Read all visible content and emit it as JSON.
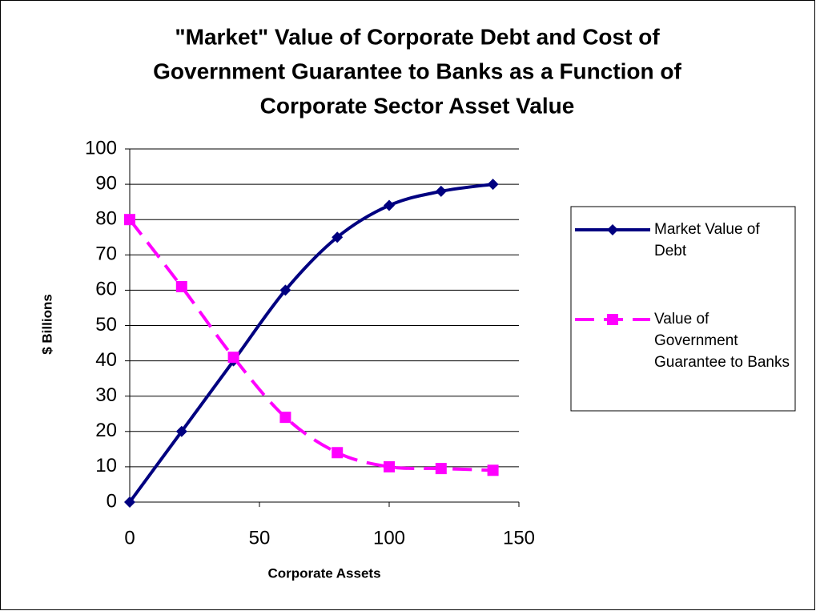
{
  "chart_data": {
    "type": "line",
    "title": [
      "\"Market\" Value of Corporate Debt and Cost of",
      "Government Guarantee to Banks as a Function of",
      "Corporate Sector Asset Value"
    ],
    "x_label": "Corporate Assets",
    "y_label": "$ Billions",
    "x": [
      0,
      20,
      40,
      60,
      80,
      100,
      120,
      140
    ],
    "series": [
      {
        "name": "Market Value of Debt",
        "color": "#000080",
        "marker": "diamond",
        "dash": false,
        "values": [
          0,
          20,
          40,
          60,
          75,
          84,
          88,
          90
        ]
      },
      {
        "name": "Value of Government Guarantee to Banks",
        "color": "#ff00ff",
        "marker": "square",
        "dash": true,
        "values": [
          80,
          61,
          41,
          24,
          14,
          10,
          9.5,
          9
        ]
      }
    ],
    "xlim": [
      0,
      150
    ],
    "xticks": [
      0,
      50,
      100,
      150
    ],
    "ylim": [
      0,
      100
    ],
    "yticks": [
      0,
      10,
      20,
      30,
      40,
      50,
      60,
      70,
      80,
      90,
      100
    ],
    "grid": true,
    "legend": "right"
  }
}
